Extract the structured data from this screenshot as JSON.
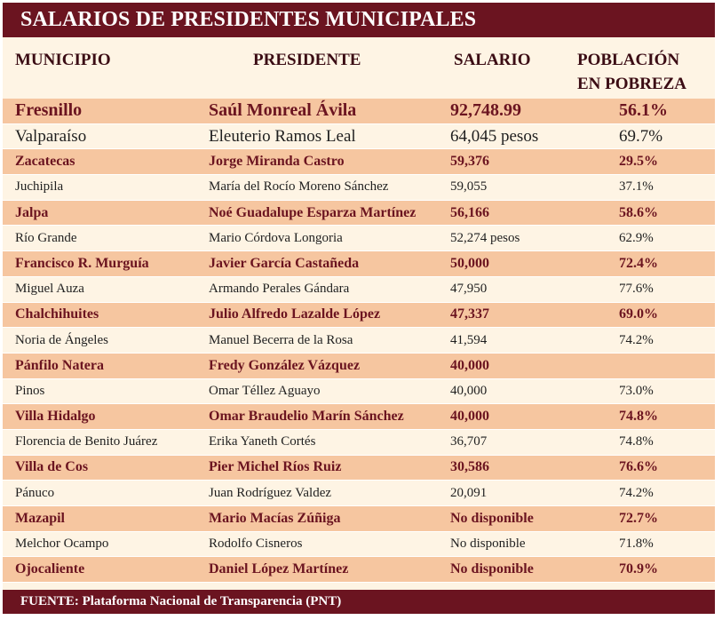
{
  "title": "SALARIOS DE PRESIDENTES MUNICIPALES",
  "headers": {
    "municipio": "MUNICIPIO",
    "presidente": "PRESIDENTE",
    "salario": "SALARIO",
    "pobreza_line1": "POBLACIÓN",
    "pobreza_line2": "EN POBREZA"
  },
  "rows": [
    {
      "municipio": "Fresnillo",
      "presidente": "Saúl Monreal Ávila",
      "salario": "92,748.99",
      "pobreza": "56.1%"
    },
    {
      "municipio": "Valparaíso",
      "presidente": "Eleuterio Ramos Leal",
      "salario": "64,045 pesos",
      "pobreza": "69.7%"
    },
    {
      "municipio": "Zacatecas",
      "presidente": "Jorge Miranda Castro",
      "salario": "59,376",
      "pobreza": "29.5%"
    },
    {
      "municipio": "Juchipila",
      "presidente": "María del Rocío Moreno Sánchez",
      "salario": "59,055",
      "pobreza": "37.1%"
    },
    {
      "municipio": "Jalpa",
      "presidente": "Noé Guadalupe Esparza Martínez",
      "salario": "56,166",
      "pobreza": "58.6%"
    },
    {
      "municipio": "Río Grande",
      "presidente": "Mario Córdova Longoria",
      "salario": "52,274 pesos",
      "pobreza": "62.9%"
    },
    {
      "municipio": "Francisco R. Murguía",
      "presidente": "Javier García Castañeda",
      "salario": "50,000",
      "pobreza": "72.4%"
    },
    {
      "municipio": "Miguel Auza",
      "presidente": "Armando Perales Gándara",
      "salario": "47,950",
      "pobreza": "77.6%"
    },
    {
      "municipio": "Chalchihuites",
      "presidente": "Julio Alfredo Lazalde López",
      "salario": "47,337",
      "pobreza": "69.0%"
    },
    {
      "municipio": "Noria de Ángeles",
      "presidente": "Manuel Becerra de la Rosa",
      "salario": "41,594",
      "pobreza": "74.2%"
    },
    {
      "municipio": "Pánfilo Natera",
      "presidente": "Fredy González Vázquez",
      "salario": "40,000",
      "pobreza": ""
    },
    {
      "municipio": "Pinos",
      "presidente": "Omar Téllez Aguayo",
      "salario": "40,000",
      "pobreza": "73.0%"
    },
    {
      "municipio": "Villa Hidalgo",
      "presidente": "Omar Braudelio Marín Sánchez",
      "salario": "40,000",
      "pobreza": "74.8%"
    },
    {
      "municipio": "Florencia de Benito Juárez",
      "presidente": "Erika Yaneth Cortés",
      "salario": "36,707",
      "pobreza": "74.8%"
    },
    {
      "municipio": "Villa de Cos",
      "presidente": "Pier Michel Ríos Ruiz",
      "salario": "30,586",
      "pobreza": "76.6%"
    },
    {
      "municipio": "Pánuco",
      "presidente": "Juan Rodríguez Valdez",
      "salario": "20,091",
      "pobreza": "74.2%"
    },
    {
      "municipio": "Mazapil",
      "presidente": "Mario Macías Zúñiga",
      "salario": "No disponible",
      "pobreza": "72.7%"
    },
    {
      "municipio": "Melchor Ocampo",
      "presidente": "Rodolfo Cisneros",
      "salario": "No disponible",
      "pobreza": "71.8%"
    },
    {
      "municipio": "Ojocaliente",
      "presidente": "Daniel López Martínez",
      "salario": "No disponible",
      "pobreza": "70.9%"
    }
  ],
  "footer": "FUENTE: Plataforma Nacional de Transparencia (PNT)",
  "colors": {
    "header_bar": "#6b1420",
    "shaded_row": "#f6c6a0",
    "background": "#fef4e4",
    "bold_text": "#6b1420"
  }
}
